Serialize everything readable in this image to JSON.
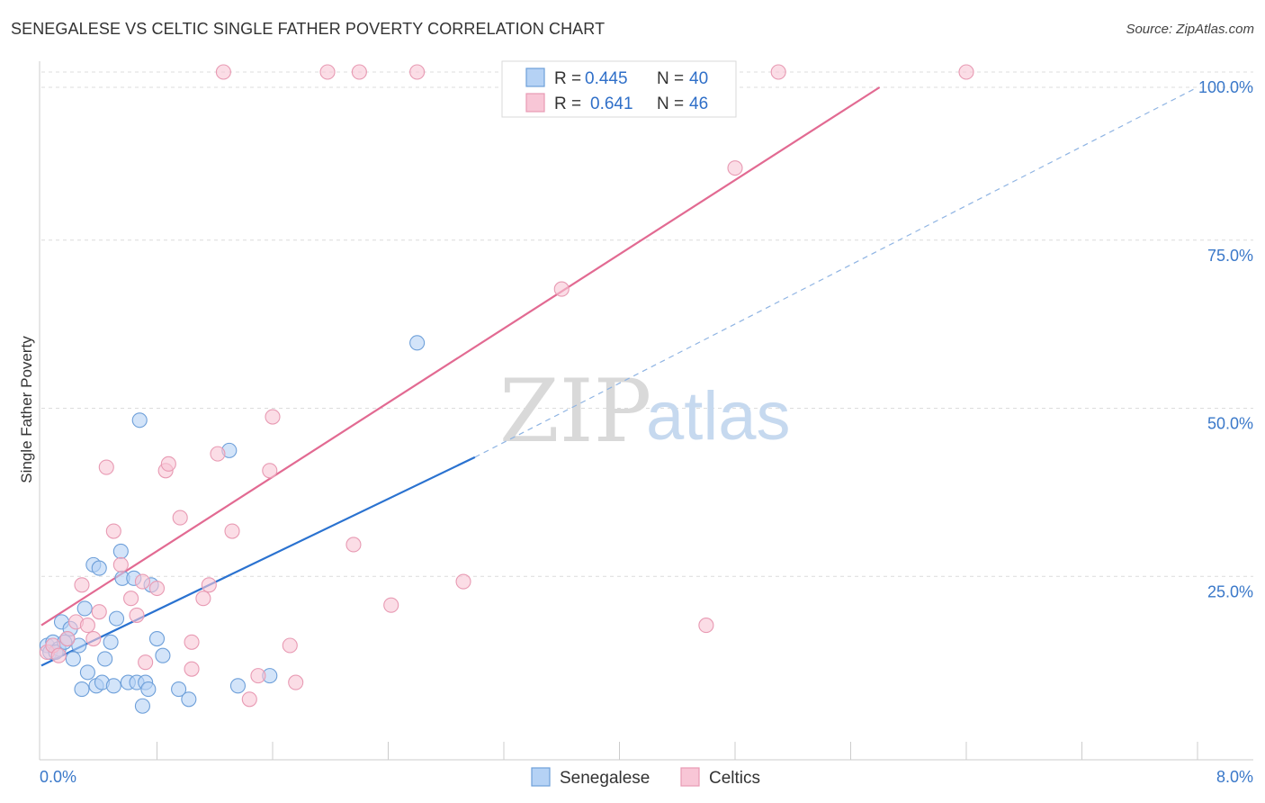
{
  "title": "SENEGALESE VS CELTIC SINGLE FATHER POVERTY CORRELATION CHART",
  "source": "Source: ZipAtlas.com",
  "watermark": {
    "part1": "ZIP",
    "part2": "atlas"
  },
  "colors": {
    "senegalese_fill": "#b5d2f5",
    "senegalese_stroke": "#6d9fd9",
    "senegalese_line": "#2a72d0",
    "celtics_fill": "#f8c6d6",
    "celtics_stroke": "#e89ab3",
    "celtics_line": "#e26a92",
    "tick_label": "#3a78c9"
  },
  "legend": {
    "row1": {
      "r_label": "R =",
      "r_value": "0.445",
      "n_label": "N =",
      "n_value": "40"
    },
    "row2": {
      "r_label": "R =",
      "r_value": "0.641",
      "n_label": "N =",
      "n_value": "46"
    }
  },
  "bottom_legend": {
    "series1": "Senegalese",
    "series2": "Celtics"
  },
  "chart_data": {
    "type": "scatter",
    "title": "SENEGALESE VS CELTIC SINGLE FATHER POVERTY CORRELATION CHART",
    "xlabel": "",
    "ylabel": "Single Father Poverty",
    "xlim": [
      0,
      8
    ],
    "ylim": [
      0,
      100
    ],
    "x_tick_labels": {
      "left": "0.0%",
      "right": "8.0%"
    },
    "y_ticks": [
      {
        "value": 25,
        "label": "25.0%"
      },
      {
        "value": 50,
        "label": "50.0%"
      },
      {
        "value": 75,
        "label": "75.0%"
      },
      {
        "value": 100,
        "label": "100.0%"
      }
    ],
    "series": [
      {
        "name": "Senegalese",
        "r": 0.445,
        "n": 40,
        "trend": {
          "x0": 0.0,
          "y0": 14.0,
          "x1": 3.0,
          "y1": 45.0,
          "x_dash_end": 8.0,
          "y_dash_end": 100.0
        },
        "points": [
          [
            0.04,
            17.0
          ],
          [
            0.06,
            16.0
          ],
          [
            0.08,
            17.5
          ],
          [
            0.12,
            16.5
          ],
          [
            0.14,
            20.5
          ],
          [
            0.18,
            18.0
          ],
          [
            0.2,
            19.5
          ],
          [
            0.22,
            15.0
          ],
          [
            0.26,
            17.0
          ],
          [
            0.28,
            10.5
          ],
          [
            0.3,
            22.5
          ],
          [
            0.32,
            13.0
          ],
          [
            0.36,
            29.0
          ],
          [
            0.38,
            11.0
          ],
          [
            0.4,
            28.5
          ],
          [
            0.42,
            11.5
          ],
          [
            0.44,
            15.0
          ],
          [
            0.48,
            17.5
          ],
          [
            0.5,
            11.0
          ],
          [
            0.52,
            21.0
          ],
          [
            0.55,
            31.0
          ],
          [
            0.56,
            27.0
          ],
          [
            0.6,
            11.5
          ],
          [
            0.64,
            27.0
          ],
          [
            0.66,
            11.5
          ],
          [
            0.68,
            50.5
          ],
          [
            0.7,
            8.0
          ],
          [
            0.72,
            11.5
          ],
          [
            0.74,
            10.5
          ],
          [
            0.76,
            26.0
          ],
          [
            0.8,
            18.0
          ],
          [
            0.84,
            15.5
          ],
          [
            0.95,
            10.5
          ],
          [
            1.02,
            9.0
          ],
          [
            1.3,
            46.0
          ],
          [
            1.36,
            11.0
          ],
          [
            1.58,
            12.5
          ],
          [
            2.6,
            62.0
          ],
          [
            0.1,
            16.0
          ],
          [
            0.16,
            17.5
          ]
        ]
      },
      {
        "name": "Celtics",
        "r": 0.641,
        "n": 46,
        "trend": {
          "x0": 0.0,
          "y0": 20.0,
          "x1": 5.8,
          "y1": 100.0
        },
        "points": [
          [
            0.04,
            16.0
          ],
          [
            0.08,
            17.0
          ],
          [
            0.12,
            15.5
          ],
          [
            0.18,
            18.0
          ],
          [
            0.24,
            20.5
          ],
          [
            0.28,
            26.0
          ],
          [
            0.32,
            20.0
          ],
          [
            0.36,
            18.0
          ],
          [
            0.4,
            22.0
          ],
          [
            0.45,
            43.5
          ],
          [
            0.5,
            34.0
          ],
          [
            0.55,
            29.0
          ],
          [
            0.62,
            24.0
          ],
          [
            0.66,
            21.5
          ],
          [
            0.7,
            26.5
          ],
          [
            0.72,
            14.5
          ],
          [
            0.8,
            25.5
          ],
          [
            0.86,
            43.0
          ],
          [
            0.88,
            44.0
          ],
          [
            0.96,
            36.0
          ],
          [
            1.04,
            17.5
          ],
          [
            1.04,
            13.5
          ],
          [
            1.12,
            24.0
          ],
          [
            1.16,
            26.0
          ],
          [
            1.22,
            45.5
          ],
          [
            1.32,
            34.0
          ],
          [
            1.44,
            9.0
          ],
          [
            1.5,
            12.5
          ],
          [
            1.58,
            43.0
          ],
          [
            1.6,
            51.0
          ],
          [
            1.72,
            17.0
          ],
          [
            1.76,
            11.5
          ],
          [
            2.16,
            32.0
          ],
          [
            2.42,
            23.0
          ],
          [
            2.92,
            26.5
          ],
          [
            3.28,
            100.0
          ],
          [
            3.6,
            70.0
          ],
          [
            4.2,
            100.0
          ],
          [
            4.6,
            20.0
          ],
          [
            4.8,
            88.0
          ],
          [
            5.1,
            100.0
          ],
          [
            6.4,
            100.0
          ],
          [
            1.26,
            100.0
          ],
          [
            1.98,
            100.0
          ],
          [
            2.2,
            100.0
          ],
          [
            2.6,
            100.0
          ]
        ]
      }
    ]
  }
}
